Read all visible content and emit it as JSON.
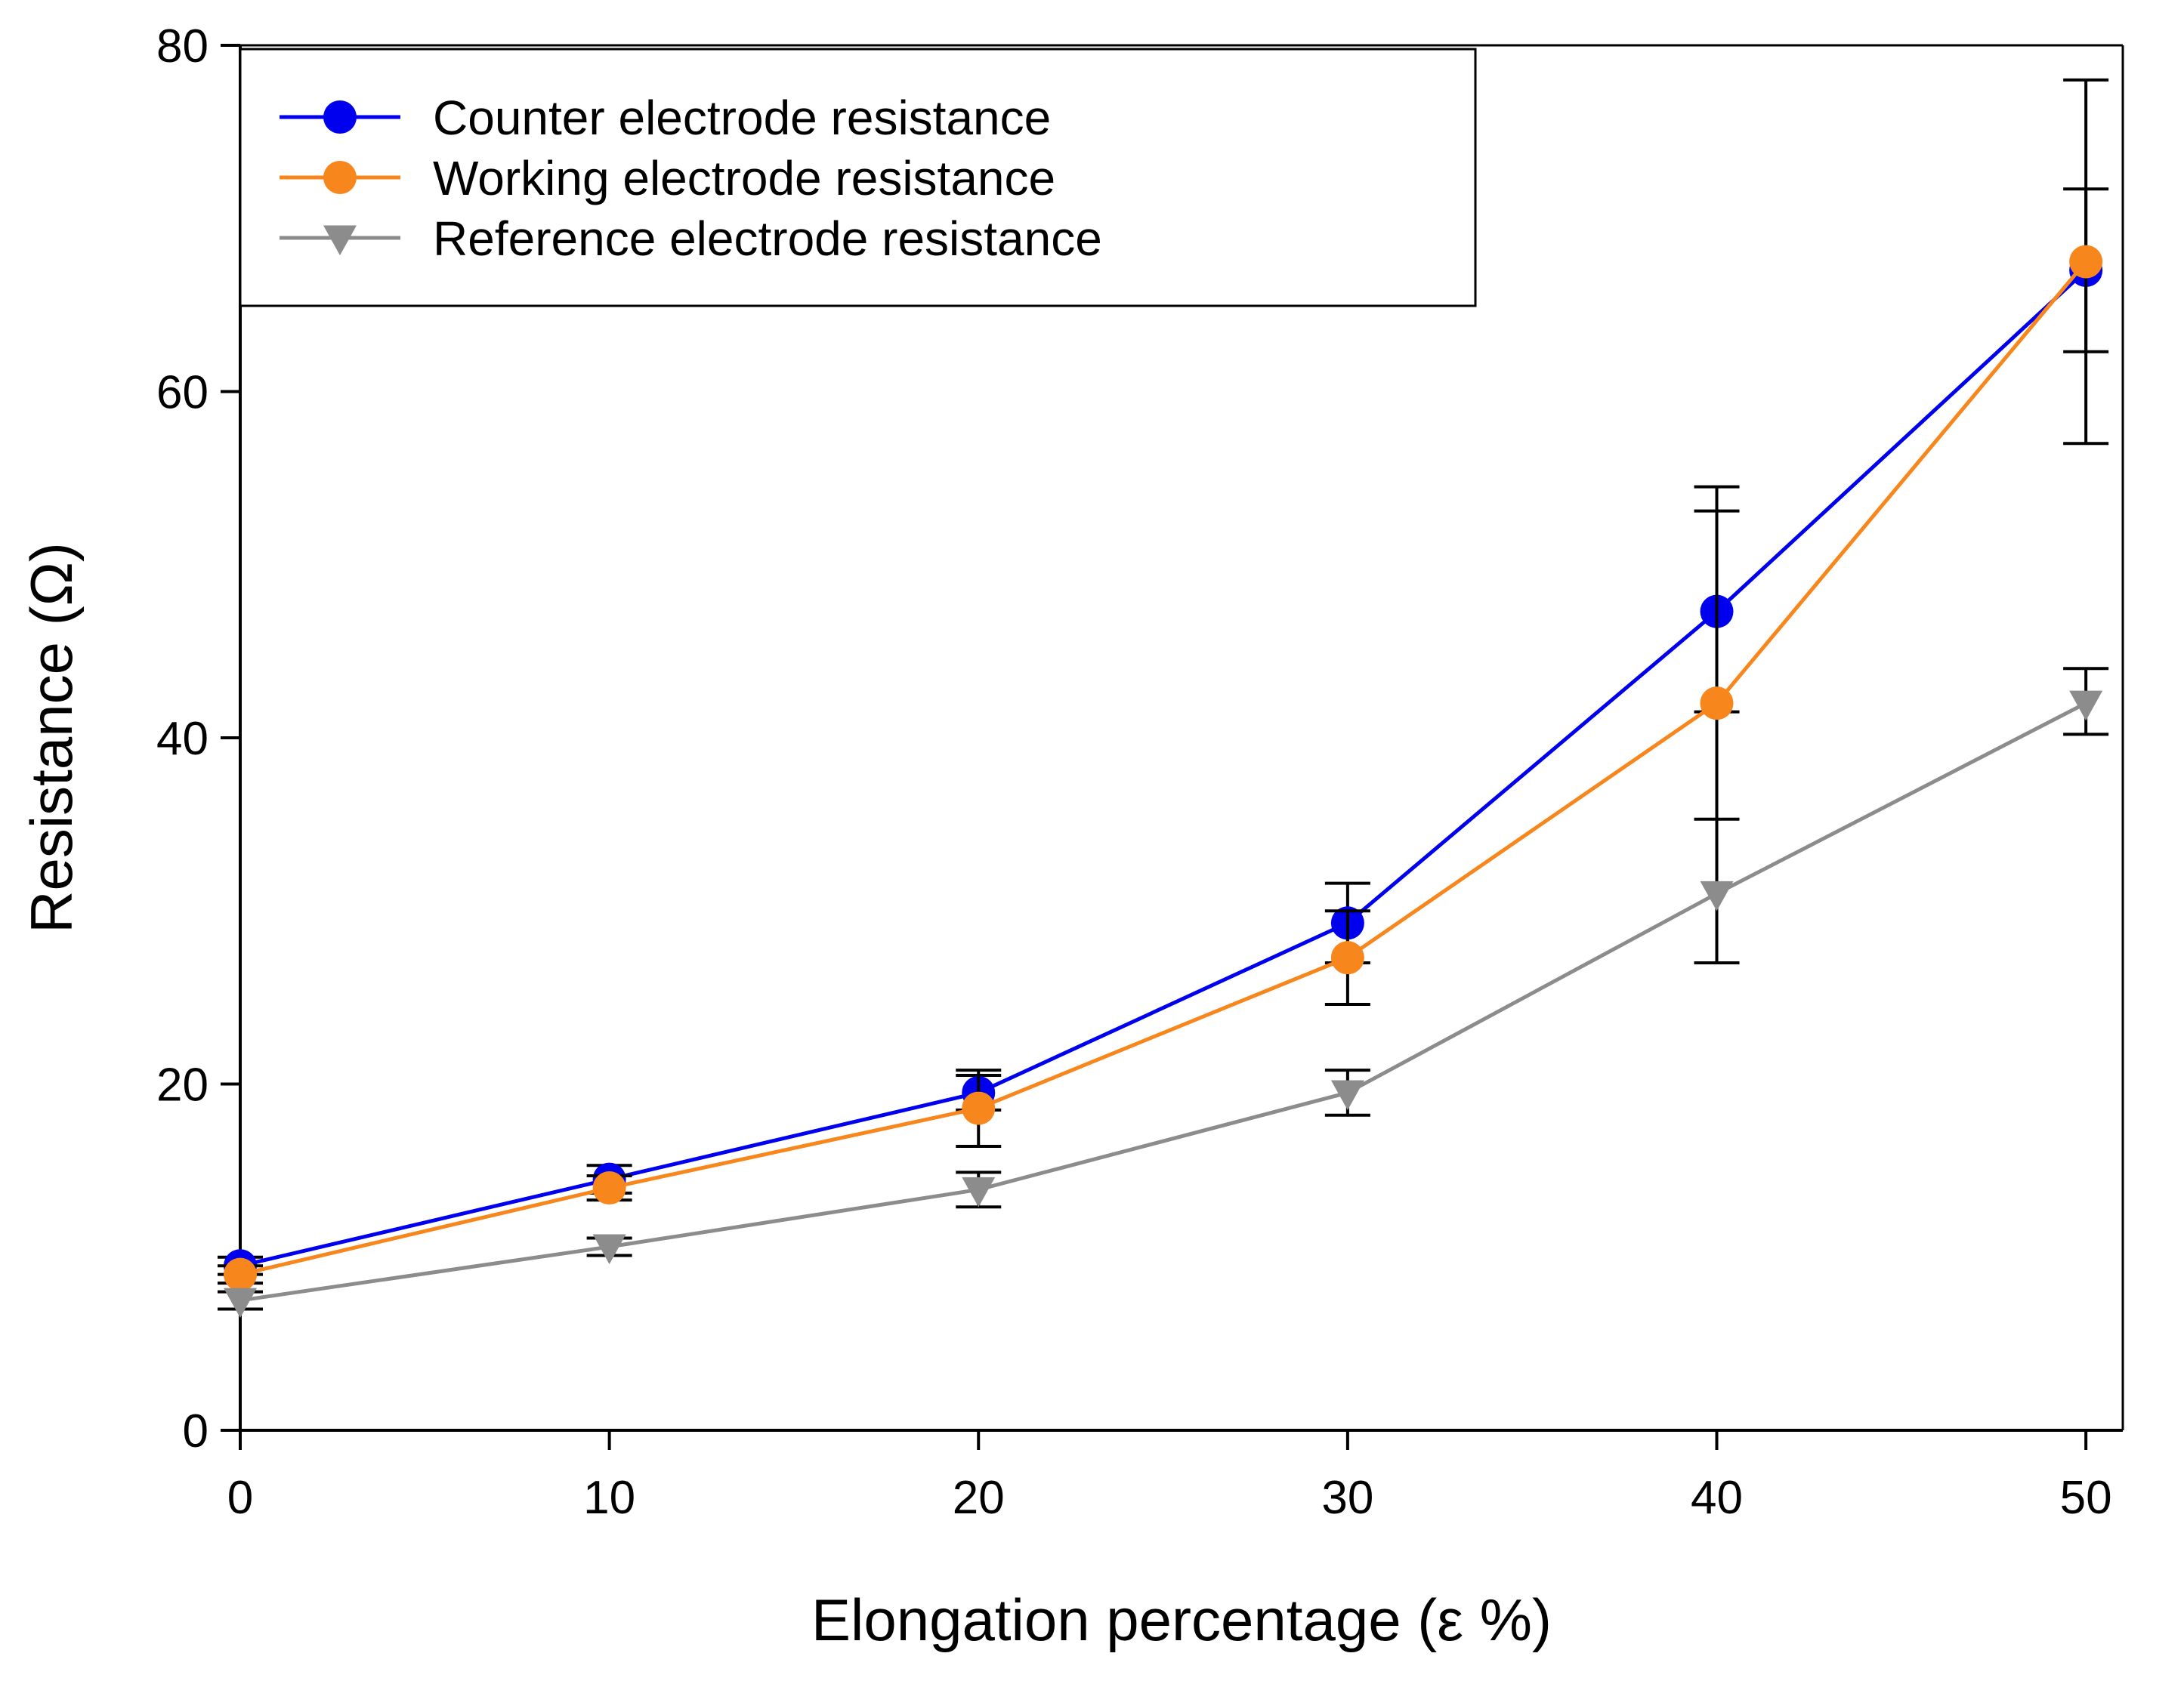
{
  "chart_data": {
    "type": "line",
    "title": "",
    "xlabel": "Elongation percentage (ε %)",
    "ylabel": "Resistance (Ω)",
    "x": [
      0,
      10,
      20,
      30,
      40,
      50
    ],
    "xlim": [
      0,
      51
    ],
    "ylim": [
      0,
      80
    ],
    "xticks": [
      "0",
      "10",
      "20",
      "30",
      "40",
      "50"
    ],
    "yticks": [
      "0",
      "20",
      "40",
      "60",
      "80"
    ],
    "grid": false,
    "legend_position": "top-left",
    "series": [
      {
        "name": "Counter electrode resistance",
        "color": "#0000ee",
        "marker": "circle",
        "values": [
          9.5,
          14.5,
          19.5,
          29.3,
          47.3,
          67.0
        ],
        "err_low": [
          0.5,
          0.8,
          1.0,
          2.3,
          5.8,
          4.7
        ],
        "err_high": [
          0.5,
          0.8,
          1.0,
          2.3,
          5.8,
          4.7
        ]
      },
      {
        "name": "Working electrode resistance",
        "color": "#f7871c",
        "marker": "circle",
        "values": [
          9.0,
          14.0,
          18.6,
          27.3,
          42.0,
          67.5
        ],
        "err_low": [
          0.5,
          0.7,
          2.2,
          2.7,
          15.0,
          10.5
        ],
        "err_high": [
          0.5,
          0.7,
          2.2,
          2.7,
          12.5,
          10.5
        ]
      },
      {
        "name": "Reference electrode resistance",
        "color": "#8c8c8c",
        "marker": "triangle-down",
        "values": [
          7.5,
          10.6,
          13.9,
          19.5,
          31.0,
          42.0
        ],
        "err_low": [
          0.5,
          0.5,
          1.0,
          1.3,
          4.0,
          1.8
        ],
        "err_high": [
          0.5,
          0.5,
          1.0,
          1.3,
          4.3,
          2.0
        ]
      }
    ]
  }
}
